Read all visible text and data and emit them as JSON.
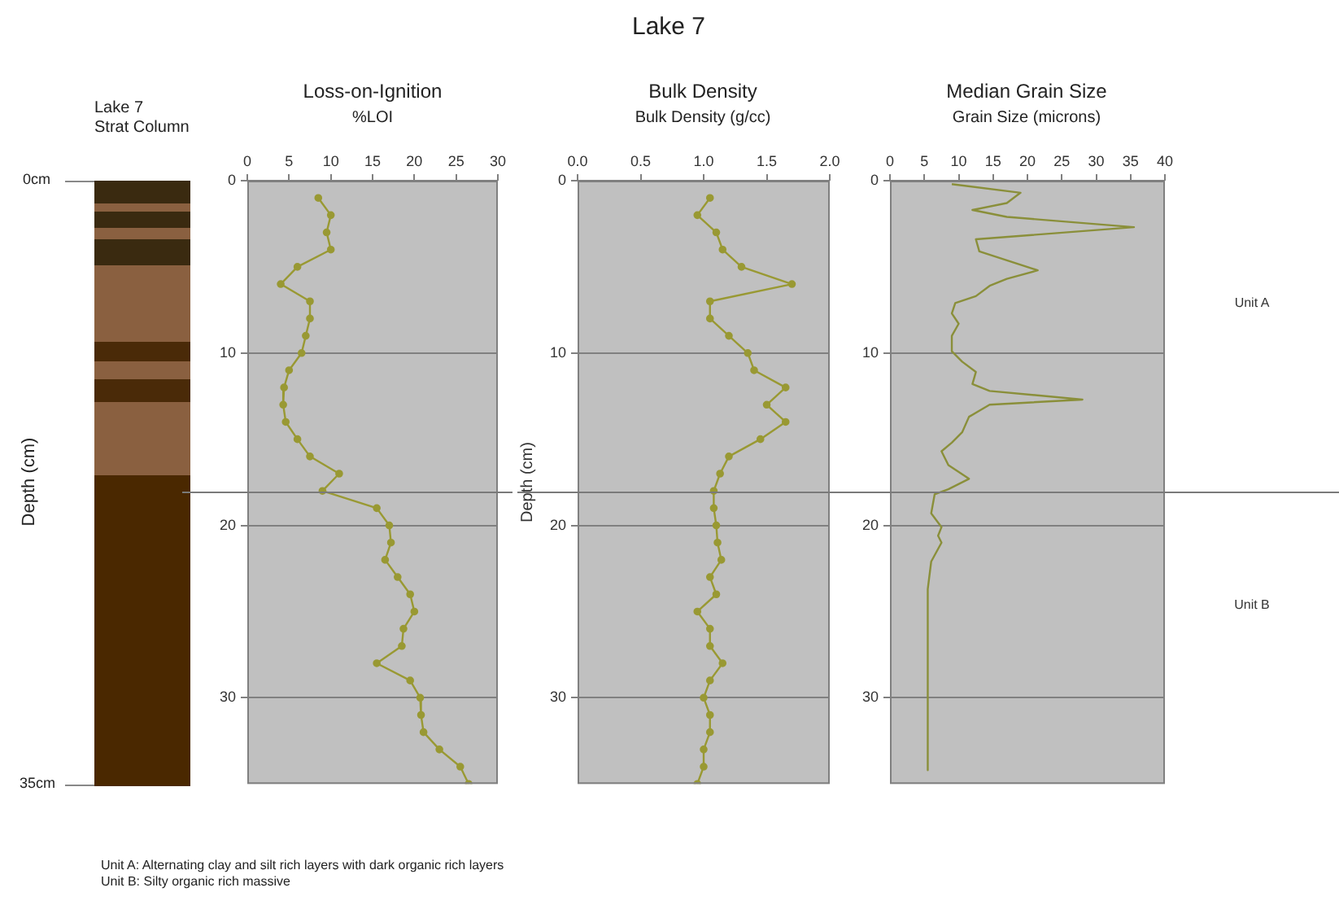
{
  "chart_data": [
    {
      "type": "other",
      "title": "Lake 7",
      "ylabel": "Depth (cm)",
      "annotations": [
        "Lake 7",
        "Strat Column",
        "0cm",
        "35cm",
        "Unit A: Alternating clay and silt rich layers with dark organic rich layers",
        "Unit B: Silty organic rich massive"
      ]
    },
    {
      "type": "line",
      "title": "Loss-on-Ignition",
      "xlabel": "%LOI",
      "series": [
        {
          "color": "#999933",
          "x": [
            8.5,
            10,
            9.5,
            10,
            6,
            4,
            7.5,
            7.5,
            7,
            6.5,
            5,
            4.4,
            4.3,
            4.6,
            6,
            7.5,
            11,
            9,
            15.5,
            17,
            17.2,
            16.5,
            18,
            19.5,
            20,
            18.7,
            18.5,
            15.5,
            19.5,
            20.7,
            20.8,
            21.1,
            23,
            25.5,
            26.5
          ],
          "values": [
            1,
            2,
            3,
            4,
            5,
            6,
            7,
            8,
            9,
            10,
            11,
            12,
            13,
            14,
            15,
            16,
            17,
            18,
            19,
            20,
            21,
            22,
            23,
            24,
            25,
            26,
            27,
            28,
            29,
            30,
            31,
            32,
            33,
            34,
            35
          ]
        }
      ],
      "xlim": [
        0,
        30
      ],
      "xticks": [
        0,
        5,
        10,
        15,
        20,
        25,
        30
      ],
      "ylim": [
        35,
        0
      ],
      "yticks": [
        0,
        10,
        20,
        30
      ],
      "grid": "y",
      "marker": "circle",
      "ref_lines": [
        {
          "axis": "y",
          "value": 18
        }
      ]
    },
    {
      "type": "line",
      "title": "Bulk Density",
      "xlabel": "Bulk Density (g/cc)",
      "ylabel": "Depth (cm)",
      "series": [
        {
          "color": "#999933",
          "x": [
            1.05,
            0.95,
            1.1,
            1.15,
            1.3,
            1.7,
            1.05,
            1.05,
            1.2,
            1.35,
            1.4,
            1.65,
            1.5,
            1.65,
            1.45,
            1.2,
            1.13,
            1.08,
            1.08,
            1.1,
            1.11,
            1.14,
            1.05,
            1.1,
            0.95,
            1.05,
            1.05,
            1.15,
            1.05,
            1.0,
            1.05,
            1.05,
            1.0,
            1.0,
            0.95
          ],
          "values": [
            1,
            2,
            3,
            4,
            5,
            6,
            7,
            8,
            9,
            10,
            11,
            12,
            13,
            14,
            15,
            16,
            17,
            18,
            19,
            20,
            21,
            22,
            23,
            24,
            25,
            26,
            27,
            28,
            29,
            30,
            31,
            32,
            33,
            34,
            35
          ]
        }
      ],
      "xlim": [
        0,
        2
      ],
      "xticks": [
        {
          "value": 0,
          "label": "0.0"
        },
        {
          "value": 0.5,
          "label": "0.5"
        },
        {
          "value": 1,
          "label": "1.0"
        },
        {
          "value": 1.5,
          "label": "1.5"
        },
        {
          "value": 2,
          "label": "2.0"
        }
      ],
      "ylim": [
        35,
        0
      ],
      "yticks": [
        0,
        10,
        20,
        30
      ],
      "grid": "y",
      "marker": "circle",
      "ref_lines": [
        {
          "axis": "y",
          "value": 18
        }
      ]
    },
    {
      "type": "line",
      "title": "Median Grain Size",
      "xlabel": "Grain Size (microns)",
      "series": [
        {
          "color": "#8a8f3a",
          "x": [
            9,
            19,
            17,
            12,
            17,
            35.5,
            12.5,
            13,
            21.5,
            17,
            14.5,
            12.5,
            9.5,
            9,
            10,
            9,
            9,
            10.5,
            12.5,
            12,
            14.5,
            28,
            14.5,
            11.5,
            10.5,
            9,
            7.5,
            8.5,
            11.5,
            8.5,
            6.5,
            6,
            7.5,
            7,
            7.5,
            6,
            5.5,
            5.5
          ],
          "values": [
            0.2,
            0.7,
            1.3,
            1.7,
            2.1,
            2.7,
            3.4,
            4.1,
            5.2,
            5.7,
            6.1,
            6.7,
            7.1,
            7.7,
            8.3,
            9,
            9.9,
            10.5,
            11.1,
            11.8,
            12.2,
            12.7,
            13,
            13.7,
            14.6,
            15.2,
            15.7,
            16.5,
            17.3,
            17.9,
            18.2,
            19.3,
            20.1,
            20.6,
            21,
            22.1,
            23.7,
            34.2
          ]
        }
      ],
      "xlim": [
        0,
        40
      ],
      "xticks": [
        0,
        5,
        10,
        15,
        20,
        25,
        30,
        35,
        40
      ],
      "ylim": [
        35,
        0
      ],
      "yticks": [
        0,
        10,
        20,
        30
      ],
      "grid": "y",
      "marker": "none",
      "ref_lines": [
        {
          "axis": "y",
          "value": 18
        }
      ],
      "annotations": [
        "Unit A",
        "Unit B"
      ]
    }
  ]
}
